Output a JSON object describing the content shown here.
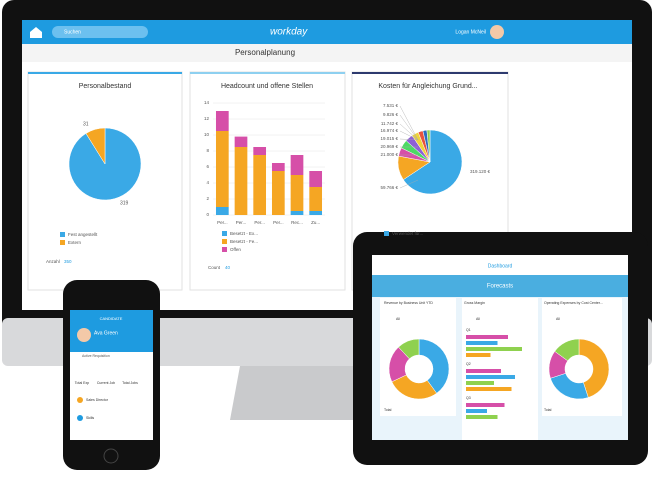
{
  "monitor": {
    "search": "Suchen",
    "logo": "workday",
    "user": "Logan McNeil",
    "page_title": "Personalplanung",
    "personalbestand": {
      "title": "Personalbestand",
      "values": [
        319,
        31
      ],
      "colors": [
        "#3aa9e6",
        "#f5a623"
      ],
      "legend": [
        "Fest angestellt",
        "Extern"
      ],
      "footer_label": "Anzahl",
      "footer_value": 350
    },
    "headcount": {
      "title": "Headcount und offene Stellen",
      "categories": [
        "Per...",
        "Per...",
        "Per...",
        "Per...",
        "Rec...",
        "Zu..."
      ],
      "ylim": [
        0,
        14
      ],
      "yticks": [
        0,
        2,
        4,
        6,
        8,
        10,
        12,
        14
      ],
      "series": [
        {
          "name": "Besetzt - Ex...",
          "color": "#3aa9e6",
          "values": [
            1,
            0,
            0,
            0,
            0.5,
            0.5
          ]
        },
        {
          "name": "Besetzt - Fe...",
          "color": "#f5a623",
          "values": [
            9.5,
            8.5,
            7.5,
            5.5,
            4.5,
            3
          ]
        },
        {
          "name": "Offen",
          "color": "#d64fa8",
          "values": [
            2.5,
            1.3,
            1,
            1,
            2.5,
            2
          ]
        }
      ],
      "footer_label": "Count",
      "footer_value": 40
    },
    "kosten": {
      "title": "Kosten für Angleichung Grund...",
      "values": [
        319120,
        59766,
        21000,
        20969,
        19015,
        16974,
        11742,
        9826,
        7531
      ],
      "value_labels": [
        "319.120 €",
        "59.766 €",
        "21.000 €",
        "20.969 €",
        "19.015 €",
        "16.974 €",
        "11.742 €",
        "9.826 €",
        "7.531 €"
      ],
      "colors": [
        "#3aa9e6",
        "#f5a623",
        "#d64fa8",
        "#4cd964",
        "#8e5fd6",
        "#f0d43a",
        "#e8533d",
        "#2d6cc0",
        "#8fd14f"
      ],
      "legend": [
        "Verwendet für..."
      ]
    }
  },
  "tablet": {
    "title": "Dashboard",
    "banner": "Forecasts",
    "cards": [
      {
        "title": "Revenue by Business Unit YTD",
        "filter": "All",
        "values": [
          40,
          28,
          20,
          12
        ],
        "colors": [
          "#3aa9e6",
          "#f5a623",
          "#d64fa8",
          "#8fd14f"
        ],
        "total_label": "Total"
      },
      {
        "title": "Gross Margin",
        "filter": "All",
        "groups": [
          "Q1",
          "Q2",
          "Q3"
        ],
        "values": [
          [
            60,
            45,
            80,
            35
          ],
          [
            50,
            70,
            40,
            65
          ],
          [
            55,
            30,
            45
          ]
        ],
        "colors": [
          "#d64fa8",
          "#3aa9e6",
          "#8fd14f",
          "#f5a623"
        ]
      },
      {
        "title": "Operating Expenses by Cost Center...",
        "filter": "All",
        "values": [
          45,
          25,
          15,
          15
        ],
        "colors": [
          "#f5a623",
          "#3aa9e6",
          "#d64fa8",
          "#8fd14f"
        ],
        "total_label": "Total"
      }
    ]
  },
  "phone": {
    "header": "CANDIDATE",
    "name": "Ava Green",
    "status": "Active Requisition",
    "stats": [
      "Total Exp",
      "Current Job",
      "Total Jobs"
    ],
    "items": [
      "Sales Director",
      "Skills"
    ]
  }
}
